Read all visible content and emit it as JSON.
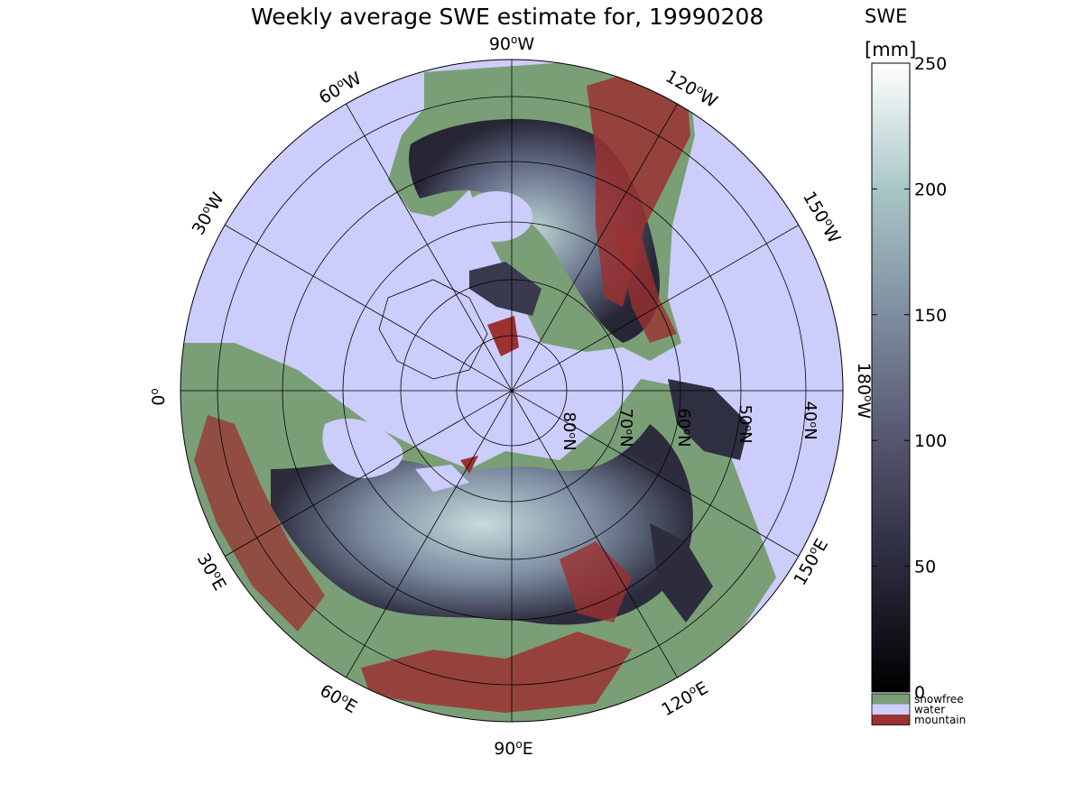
{
  "title": "Weekly average SWE estimate for, 19990208",
  "colorbar": {
    "label_line1": "SWE",
    "label_line2": "[mm]",
    "ticks": [
      "0",
      "50",
      "100",
      "150",
      "200",
      "250"
    ],
    "range": [
      0,
      250
    ],
    "categories": [
      {
        "label": "snowfree",
        "color": "#7a9f77"
      },
      {
        "label": "water",
        "color": "#cccdfb"
      },
      {
        "label": "mountain",
        "color": "#9b3131"
      }
    ]
  },
  "map": {
    "projection": "north polar stereographic",
    "longitude_labels": [
      {
        "sup": "o",
        "base": "90",
        "hemi": "W",
        "text": "90°W"
      },
      {
        "sup": "o",
        "base": "120",
        "hemi": "W",
        "text": "120°W"
      },
      {
        "sup": "o",
        "base": "150",
        "hemi": "W",
        "text": "150°W"
      },
      {
        "sup": "o",
        "base": "180",
        "hemi": "W",
        "text": "180°W"
      },
      {
        "sup": "o",
        "base": "150",
        "hemi": "E",
        "text": "150°E"
      },
      {
        "sup": "o",
        "base": "120",
        "hemi": "E",
        "text": "120°E"
      },
      {
        "sup": "o",
        "base": "90",
        "hemi": "E",
        "text": "90°E"
      },
      {
        "sup": "o",
        "base": "60",
        "hemi": "E",
        "text": "60°E"
      },
      {
        "sup": "o",
        "base": "30",
        "hemi": "E",
        "text": "30°E"
      },
      {
        "sup": "o",
        "base": "0",
        "hemi": "",
        "text": "0°"
      },
      {
        "sup": "o",
        "base": "30",
        "hemi": "W",
        "text": "30°W"
      },
      {
        "sup": "o",
        "base": "60",
        "hemi": "W",
        "text": "60°W"
      }
    ],
    "latitude_labels": [
      {
        "base": "80",
        "hemi": "N",
        "text": "80°N"
      },
      {
        "base": "70",
        "hemi": "N",
        "text": "70°N"
      },
      {
        "base": "60",
        "hemi": "N",
        "text": "60°N"
      },
      {
        "base": "50",
        "hemi": "N",
        "text": "50°N"
      },
      {
        "base": "40",
        "hemi": "N",
        "text": "40°N"
      }
    ]
  }
}
